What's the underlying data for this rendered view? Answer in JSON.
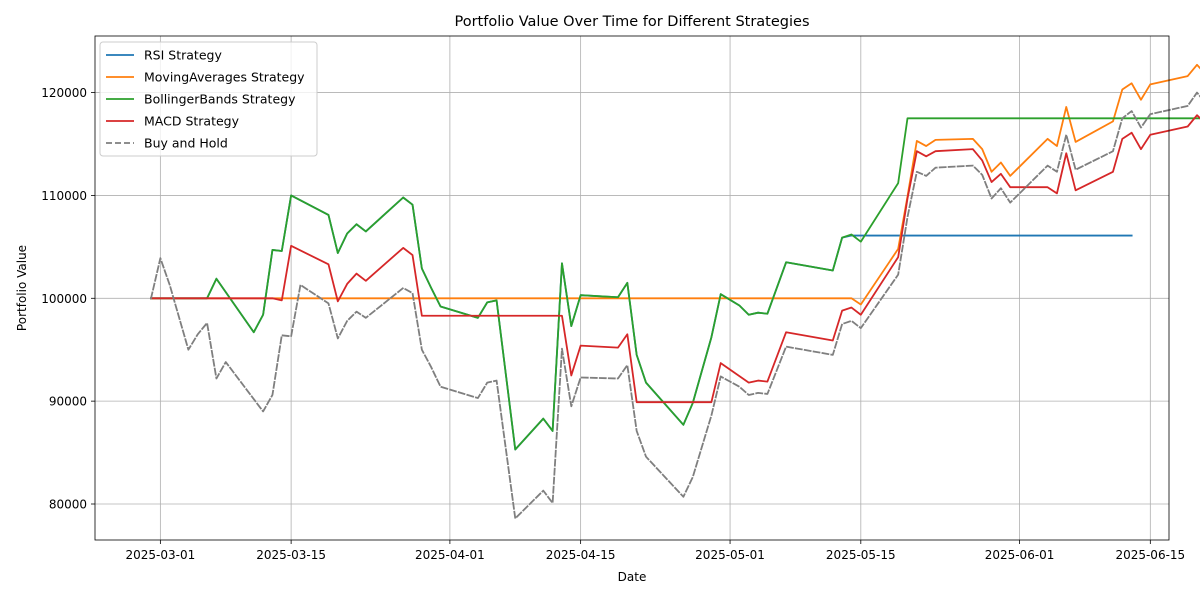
{
  "chart_data": {
    "type": "line",
    "title": "Portfolio Value Over Time for Different Strategies",
    "xlabel": "Date",
    "ylabel": "Portfolio Value",
    "xlim": [
      "2025-02-22",
      "2025-06-17"
    ],
    "ylim": [
      76500,
      125500
    ],
    "x_ticks": [
      "2025-03-01",
      "2025-03-15",
      "2025-04-01",
      "2025-04-15",
      "2025-05-01",
      "2025-05-15",
      "2025-06-01",
      "2025-06-15"
    ],
    "y_ticks": [
      80000,
      90000,
      100000,
      110000,
      120000
    ],
    "grid": true,
    "legend_position": "top-left",
    "series": [
      {
        "name": "RSI Strategy",
        "color": "#1f77b4",
        "dash": "solid",
        "points": [
          [
            "2025-02-28",
            100000
          ],
          [
            "2025-03-06",
            100000
          ],
          [
            "2025-03-07",
            101900
          ],
          [
            "2025-03-11",
            96700
          ],
          [
            "2025-03-12",
            98400
          ],
          [
            "2025-03-13",
            104700
          ],
          [
            "2025-03-14",
            104600
          ],
          [
            "2025-03-15",
            110000
          ],
          [
            "2025-03-19",
            108100
          ],
          [
            "2025-03-20",
            104400
          ],
          [
            "2025-03-21",
            106300
          ],
          [
            "2025-03-22",
            107200
          ],
          [
            "2025-03-23",
            106500
          ],
          [
            "2025-03-27",
            109800
          ],
          [
            "2025-03-28",
            109100
          ],
          [
            "2025-03-29",
            102900
          ],
          [
            "2025-03-30",
            101000
          ],
          [
            "2025-03-31",
            99200
          ],
          [
            "2025-04-04",
            98100
          ],
          [
            "2025-04-05",
            99600
          ],
          [
            "2025-04-06",
            99800
          ],
          [
            "2025-04-08",
            85300
          ],
          [
            "2025-04-11",
            88300
          ],
          [
            "2025-04-12",
            87100
          ],
          [
            "2025-04-13",
            103400
          ],
          [
            "2025-04-14",
            97300
          ],
          [
            "2025-04-15",
            100300
          ],
          [
            "2025-04-19",
            100100
          ],
          [
            "2025-04-20",
            101500
          ],
          [
            "2025-04-21",
            94500
          ],
          [
            "2025-04-22",
            91800
          ],
          [
            "2025-04-26",
            87700
          ],
          [
            "2025-04-27",
            89800
          ],
          [
            "2025-04-29",
            96200
          ],
          [
            "2025-04-30",
            100400
          ],
          [
            "2025-05-02",
            99300
          ],
          [
            "2025-05-03",
            98400
          ],
          [
            "2025-05-04",
            98600
          ],
          [
            "2025-05-05",
            98500
          ],
          [
            "2025-05-07",
            103500
          ],
          [
            "2025-05-12",
            102700
          ],
          [
            "2025-05-13",
            105900
          ],
          [
            "2025-05-14",
            106100
          ],
          [
            "2025-06-13",
            106100
          ]
        ]
      },
      {
        "name": "MovingAverages Strategy",
        "color": "#ff7f0e",
        "dash": "solid",
        "points": [
          [
            "2025-02-28",
            100000
          ],
          [
            "2025-05-14",
            100000
          ],
          [
            "2025-05-15",
            99400
          ],
          [
            "2025-05-19",
            104800
          ],
          [
            "2025-05-20",
            109900
          ],
          [
            "2025-05-21",
            115300
          ],
          [
            "2025-05-22",
            114800
          ],
          [
            "2025-05-23",
            115400
          ],
          [
            "2025-05-27",
            115500
          ],
          [
            "2025-05-28",
            114500
          ],
          [
            "2025-05-29",
            112300
          ],
          [
            "2025-05-30",
            113200
          ],
          [
            "2025-05-31",
            111900
          ],
          [
            "2025-06-04",
            115500
          ],
          [
            "2025-06-05",
            114800
          ],
          [
            "2025-06-06",
            118600
          ],
          [
            "2025-06-07",
            115200
          ],
          [
            "2025-06-11",
            117200
          ],
          [
            "2025-06-12",
            120300
          ],
          [
            "2025-06-13",
            120900
          ],
          [
            "2025-06-14",
            119300
          ],
          [
            "2025-06-15",
            120800
          ],
          [
            "2025-06-19",
            121600
          ],
          [
            "2025-06-20",
            122700
          ],
          [
            "2025-06-21",
            121700
          ],
          [
            "2025-06-22",
            123600
          ]
        ]
      },
      {
        "name": "BollingerBands Strategy",
        "color": "#2ca02c",
        "dash": "solid",
        "points": [
          [
            "2025-02-28",
            100000
          ],
          [
            "2025-03-06",
            100000
          ],
          [
            "2025-03-07",
            101900
          ],
          [
            "2025-03-11",
            96700
          ],
          [
            "2025-03-12",
            98400
          ],
          [
            "2025-03-13",
            104700
          ],
          [
            "2025-03-14",
            104600
          ],
          [
            "2025-03-15",
            110000
          ],
          [
            "2025-03-19",
            108100
          ],
          [
            "2025-03-20",
            104400
          ],
          [
            "2025-03-21",
            106300
          ],
          [
            "2025-03-22",
            107200
          ],
          [
            "2025-03-23",
            106500
          ],
          [
            "2025-03-27",
            109800
          ],
          [
            "2025-03-28",
            109100
          ],
          [
            "2025-03-29",
            102900
          ],
          [
            "2025-03-30",
            101000
          ],
          [
            "2025-03-31",
            99200
          ],
          [
            "2025-04-04",
            98100
          ],
          [
            "2025-04-05",
            99600
          ],
          [
            "2025-04-06",
            99800
          ],
          [
            "2025-04-08",
            85300
          ],
          [
            "2025-04-11",
            88300
          ],
          [
            "2025-04-12",
            87100
          ],
          [
            "2025-04-13",
            103400
          ],
          [
            "2025-04-14",
            97300
          ],
          [
            "2025-04-15",
            100300
          ],
          [
            "2025-04-19",
            100100
          ],
          [
            "2025-04-20",
            101500
          ],
          [
            "2025-04-21",
            94500
          ],
          [
            "2025-04-22",
            91800
          ],
          [
            "2025-04-26",
            87700
          ],
          [
            "2025-04-27",
            89800
          ],
          [
            "2025-04-29",
            96200
          ],
          [
            "2025-04-30",
            100400
          ],
          [
            "2025-05-02",
            99300
          ],
          [
            "2025-05-03",
            98400
          ],
          [
            "2025-05-04",
            98600
          ],
          [
            "2025-05-05",
            98500
          ],
          [
            "2025-05-07",
            103500
          ],
          [
            "2025-05-12",
            102700
          ],
          [
            "2025-05-13",
            105900
          ],
          [
            "2025-05-14",
            106200
          ],
          [
            "2025-05-15",
            105500
          ],
          [
            "2025-05-19",
            111200
          ],
          [
            "2025-05-20",
            117500
          ],
          [
            "2025-06-22",
            117500
          ]
        ]
      },
      {
        "name": "MACD Strategy",
        "color": "#d62728",
        "dash": "solid",
        "points": [
          [
            "2025-02-28",
            100000
          ],
          [
            "2025-03-13",
            100000
          ],
          [
            "2025-03-14",
            99800
          ],
          [
            "2025-03-15",
            105100
          ],
          [
            "2025-03-19",
            103300
          ],
          [
            "2025-03-20",
            99700
          ],
          [
            "2025-03-21",
            101400
          ],
          [
            "2025-03-22",
            102400
          ],
          [
            "2025-03-23",
            101700
          ],
          [
            "2025-03-27",
            104900
          ],
          [
            "2025-03-28",
            104200
          ],
          [
            "2025-03-29",
            98300
          ],
          [
            "2025-04-12",
            98300
          ],
          [
            "2025-04-13",
            98300
          ],
          [
            "2025-04-14",
            92500
          ],
          [
            "2025-04-15",
            95400
          ],
          [
            "2025-04-19",
            95200
          ],
          [
            "2025-04-20",
            96500
          ],
          [
            "2025-04-21",
            89900
          ],
          [
            "2025-04-29",
            89900
          ],
          [
            "2025-04-30",
            93700
          ],
          [
            "2025-05-03",
            91800
          ],
          [
            "2025-05-04",
            92000
          ],
          [
            "2025-05-05",
            91900
          ],
          [
            "2025-05-07",
            96700
          ],
          [
            "2025-05-12",
            95900
          ],
          [
            "2025-05-13",
            98800
          ],
          [
            "2025-05-14",
            99100
          ],
          [
            "2025-05-15",
            98400
          ],
          [
            "2025-05-19",
            104000
          ],
          [
            "2025-05-20",
            109700
          ],
          [
            "2025-05-21",
            114300
          ],
          [
            "2025-05-22",
            113800
          ],
          [
            "2025-05-23",
            114300
          ],
          [
            "2025-05-27",
            114500
          ],
          [
            "2025-05-28",
            113400
          ],
          [
            "2025-05-29",
            111300
          ],
          [
            "2025-05-30",
            112100
          ],
          [
            "2025-05-31",
            110800
          ],
          [
            "2025-06-04",
            110800
          ],
          [
            "2025-06-05",
            110200
          ],
          [
            "2025-06-06",
            114100
          ],
          [
            "2025-06-07",
            110500
          ],
          [
            "2025-06-11",
            112300
          ],
          [
            "2025-06-12",
            115500
          ],
          [
            "2025-06-13",
            116100
          ],
          [
            "2025-06-14",
            114500
          ],
          [
            "2025-06-15",
            115900
          ],
          [
            "2025-06-19",
            116700
          ],
          [
            "2025-06-20",
            117800
          ],
          [
            "2025-06-21",
            116900
          ],
          [
            "2025-06-22",
            118600
          ]
        ]
      },
      {
        "name": "Buy and Hold",
        "color": "#7f7f7f",
        "dash": "dashed",
        "points": [
          [
            "2025-02-28",
            100000
          ],
          [
            "2025-03-01",
            103900
          ],
          [
            "2025-03-02",
            101300
          ],
          [
            "2025-03-04",
            95000
          ],
          [
            "2025-03-05",
            96500
          ],
          [
            "2025-03-06",
            97600
          ],
          [
            "2025-03-07",
            92200
          ],
          [
            "2025-03-08",
            93800
          ],
          [
            "2025-03-12",
            89000
          ],
          [
            "2025-03-13",
            90600
          ],
          [
            "2025-03-14",
            96400
          ],
          [
            "2025-03-15",
            96300
          ],
          [
            "2025-03-16",
            101300
          ],
          [
            "2025-03-19",
            99500
          ],
          [
            "2025-03-20",
            96100
          ],
          [
            "2025-03-21",
            97800
          ],
          [
            "2025-03-22",
            98700
          ],
          [
            "2025-03-23",
            98100
          ],
          [
            "2025-03-27",
            101000
          ],
          [
            "2025-03-28",
            100500
          ],
          [
            "2025-03-29",
            95000
          ],
          [
            "2025-03-30",
            93300
          ],
          [
            "2025-03-31",
            91400
          ],
          [
            "2025-04-04",
            90300
          ],
          [
            "2025-04-05",
            91800
          ],
          [
            "2025-04-06",
            92000
          ],
          [
            "2025-04-08",
            78600
          ],
          [
            "2025-04-11",
            81300
          ],
          [
            "2025-04-12",
            80100
          ],
          [
            "2025-04-13",
            95100
          ],
          [
            "2025-04-14",
            89500
          ],
          [
            "2025-04-15",
            92300
          ],
          [
            "2025-04-19",
            92200
          ],
          [
            "2025-04-20",
            93500
          ],
          [
            "2025-04-21",
            87100
          ],
          [
            "2025-04-22",
            84600
          ],
          [
            "2025-04-26",
            80700
          ],
          [
            "2025-04-27",
            82600
          ],
          [
            "2025-04-29",
            88600
          ],
          [
            "2025-04-30",
            92400
          ],
          [
            "2025-05-02",
            91400
          ],
          [
            "2025-05-03",
            90600
          ],
          [
            "2025-05-04",
            90800
          ],
          [
            "2025-05-05",
            90700
          ],
          [
            "2025-05-07",
            95300
          ],
          [
            "2025-05-12",
            94500
          ],
          [
            "2025-05-13",
            97500
          ],
          [
            "2025-05-14",
            97800
          ],
          [
            "2025-05-15",
            97100
          ],
          [
            "2025-05-19",
            102300
          ],
          [
            "2025-05-20",
            107900
          ],
          [
            "2025-05-21",
            112300
          ],
          [
            "2025-05-22",
            111900
          ],
          [
            "2025-05-23",
            112700
          ],
          [
            "2025-05-27",
            112900
          ],
          [
            "2025-05-28",
            112000
          ],
          [
            "2025-05-29",
            109700
          ],
          [
            "2025-05-30",
            110700
          ],
          [
            "2025-05-31",
            109300
          ],
          [
            "2025-06-04",
            112900
          ],
          [
            "2025-06-05",
            112300
          ],
          [
            "2025-06-06",
            115900
          ],
          [
            "2025-06-07",
            112500
          ],
          [
            "2025-06-11",
            114300
          ],
          [
            "2025-06-12",
            117500
          ],
          [
            "2025-06-13",
            118200
          ],
          [
            "2025-06-14",
            116600
          ],
          [
            "2025-06-15",
            117900
          ],
          [
            "2025-06-19",
            118700
          ],
          [
            "2025-06-20",
            120000
          ],
          [
            "2025-06-21",
            118900
          ],
          [
            "2025-06-22",
            120800
          ]
        ]
      }
    ]
  }
}
